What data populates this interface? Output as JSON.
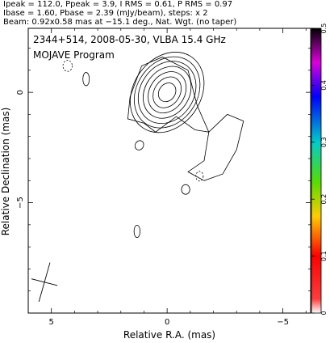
{
  "header": {
    "line1": "Ipeak = 112.0, Ppeak = 3.9, I RMS = 0.61, P RMS = 0.97",
    "line2": "Ibase = 1.60, Pbase = 2.39 (mJy/beam), steps: x 2",
    "line3": "Beam: 0.92x0.58 mas at −15.1 deg., Nat. Wgt. (no taper)"
  },
  "chart_data": {
    "type": "contour",
    "title": "2344+514, 2008-05-30, VLBA 15.4 GHz",
    "subtitle": "MOJAVE Program",
    "xlabel": "Relative R.A. (mas)",
    "ylabel": "Relative Declination (mas)",
    "xlim": [
      6.0,
      -6.2
    ],
    "ylim": [
      -10.0,
      2.9
    ],
    "x_ticks": [
      5,
      0,
      -5
    ],
    "x_tick_labels": [
      "5",
      "0",
      "−5"
    ],
    "y_ticks": [
      0,
      -5
    ],
    "y_tick_labels": [
      "0",
      "−5"
    ],
    "colorbar": {
      "range": [
        0,
        0.5
      ],
      "ticks": [
        0,
        0.1,
        0.2,
        0.3,
        0.4,
        0.5
      ],
      "tick_labels": [
        "0",
        "0.1",
        "0.2",
        "0.3",
        "0.4",
        "0.5"
      ]
    },
    "core": {
      "ra": 0.0,
      "dec": 0.0,
      "peak_mJy": 112.0
    },
    "contour_levels_mJy": [
      1.6,
      3.2,
      6.4,
      12.8,
      25.6,
      51.2,
      102.4
    ],
    "beam": {
      "major_mas": 0.92,
      "minor_mas": 0.58,
      "pa_deg": -15.1,
      "ra": 5.3,
      "dec": -8.6
    },
    "features": [
      {
        "name": "core-jet",
        "ra": -0.3,
        "dec": -0.9
      },
      {
        "name": "extended-jet",
        "ra": -2.1,
        "dec": -3.3
      },
      {
        "name": "knot",
        "ra": 3.5,
        "dec": 0.6
      },
      {
        "name": "knot",
        "ra": 1.2,
        "dec": -2.4
      },
      {
        "name": "knot",
        "ra": -0.8,
        "dec": -4.4
      },
      {
        "name": "knot",
        "ra": 1.3,
        "dec": -6.3
      },
      {
        "name": "negative-contour",
        "ra": 4.3,
        "dec": 1.2
      },
      {
        "name": "negative-contour",
        "ra": -1.4,
        "dec": -3.8
      }
    ]
  }
}
